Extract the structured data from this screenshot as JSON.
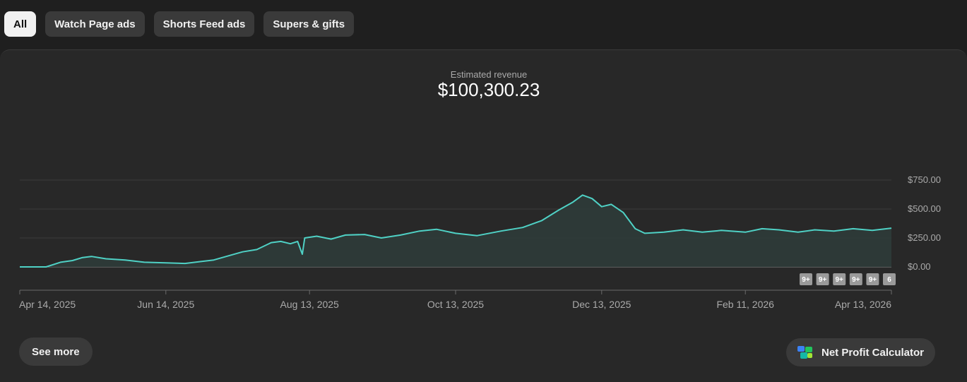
{
  "filters": {
    "all": "All",
    "watch_page_ads": "Watch Page ads",
    "shorts_feed_ads": "Shorts Feed ads",
    "supers_gifts": "Supers & gifts"
  },
  "metric": {
    "label": "Estimated revenue",
    "value": "$100,300.23"
  },
  "chart_data": {
    "type": "area",
    "y_ticks": [
      "$750.00",
      "$500.00",
      "$250.00",
      "$0.00"
    ],
    "ylim": [
      0,
      750
    ],
    "x_ticks": [
      "Apr 14, 2025",
      "Jun 14, 2025",
      "Aug 13, 2025",
      "Oct 13, 2025",
      "Dec 13, 2025",
      "Feb 11, 2026",
      "Apr 13, 2026"
    ],
    "x_range": [
      "2025-04-14",
      "2026-04-13"
    ],
    "grid": true,
    "color": "#4fd1c5",
    "fill_color": "#2e3b38",
    "annotation_badges": [
      "9+",
      "9+",
      "9+",
      "9+",
      "9+",
      "6"
    ],
    "series": [
      {
        "points": [
          [
            "2025-04-14",
            0
          ],
          [
            "2025-04-25",
            0
          ],
          [
            "2025-05-01",
            40
          ],
          [
            "2025-05-06",
            55
          ],
          [
            "2025-05-10",
            80
          ],
          [
            "2025-05-14",
            90
          ],
          [
            "2025-05-20",
            70
          ],
          [
            "2025-05-28",
            60
          ],
          [
            "2025-06-05",
            40
          ],
          [
            "2025-06-14",
            35
          ],
          [
            "2025-06-22",
            30
          ],
          [
            "2025-06-28",
            45
          ],
          [
            "2025-07-04",
            60
          ],
          [
            "2025-07-10",
            95
          ],
          [
            "2025-07-16",
            130
          ],
          [
            "2025-07-22",
            150
          ],
          [
            "2025-07-28",
            210
          ],
          [
            "2025-08-01",
            220
          ],
          [
            "2025-08-05",
            200
          ],
          [
            "2025-08-08",
            220
          ],
          [
            "2025-08-10",
            110
          ],
          [
            "2025-08-11",
            250
          ],
          [
            "2025-08-16",
            265
          ],
          [
            "2025-08-22",
            240
          ],
          [
            "2025-08-28",
            275
          ],
          [
            "2025-09-05",
            280
          ],
          [
            "2025-09-12",
            250
          ],
          [
            "2025-09-20",
            275
          ],
          [
            "2025-09-28",
            310
          ],
          [
            "2025-10-05",
            325
          ],
          [
            "2025-10-13",
            290
          ],
          [
            "2025-10-22",
            270
          ],
          [
            "2025-11-01",
            310
          ],
          [
            "2025-11-10",
            340
          ],
          [
            "2025-11-18",
            400
          ],
          [
            "2025-11-25",
            490
          ],
          [
            "2025-12-01",
            560
          ],
          [
            "2025-12-05",
            620
          ],
          [
            "2025-12-09",
            590
          ],
          [
            "2025-12-13",
            520
          ],
          [
            "2025-12-17",
            540
          ],
          [
            "2025-12-22",
            470
          ],
          [
            "2025-12-27",
            330
          ],
          [
            "2025-12-31",
            290
          ],
          [
            "2026-01-08",
            300
          ],
          [
            "2026-01-16",
            320
          ],
          [
            "2026-01-24",
            300
          ],
          [
            "2026-02-01",
            315
          ],
          [
            "2026-02-11",
            300
          ],
          [
            "2026-02-18",
            330
          ],
          [
            "2026-02-25",
            320
          ],
          [
            "2026-03-05",
            300
          ],
          [
            "2026-03-12",
            320
          ],
          [
            "2026-03-20",
            310
          ],
          [
            "2026-03-28",
            330
          ],
          [
            "2026-04-05",
            315
          ],
          [
            "2026-04-13",
            335
          ]
        ]
      }
    ]
  },
  "buttons": {
    "see_more": "See more",
    "net_profit_calculator": "Net Profit Calculator"
  }
}
